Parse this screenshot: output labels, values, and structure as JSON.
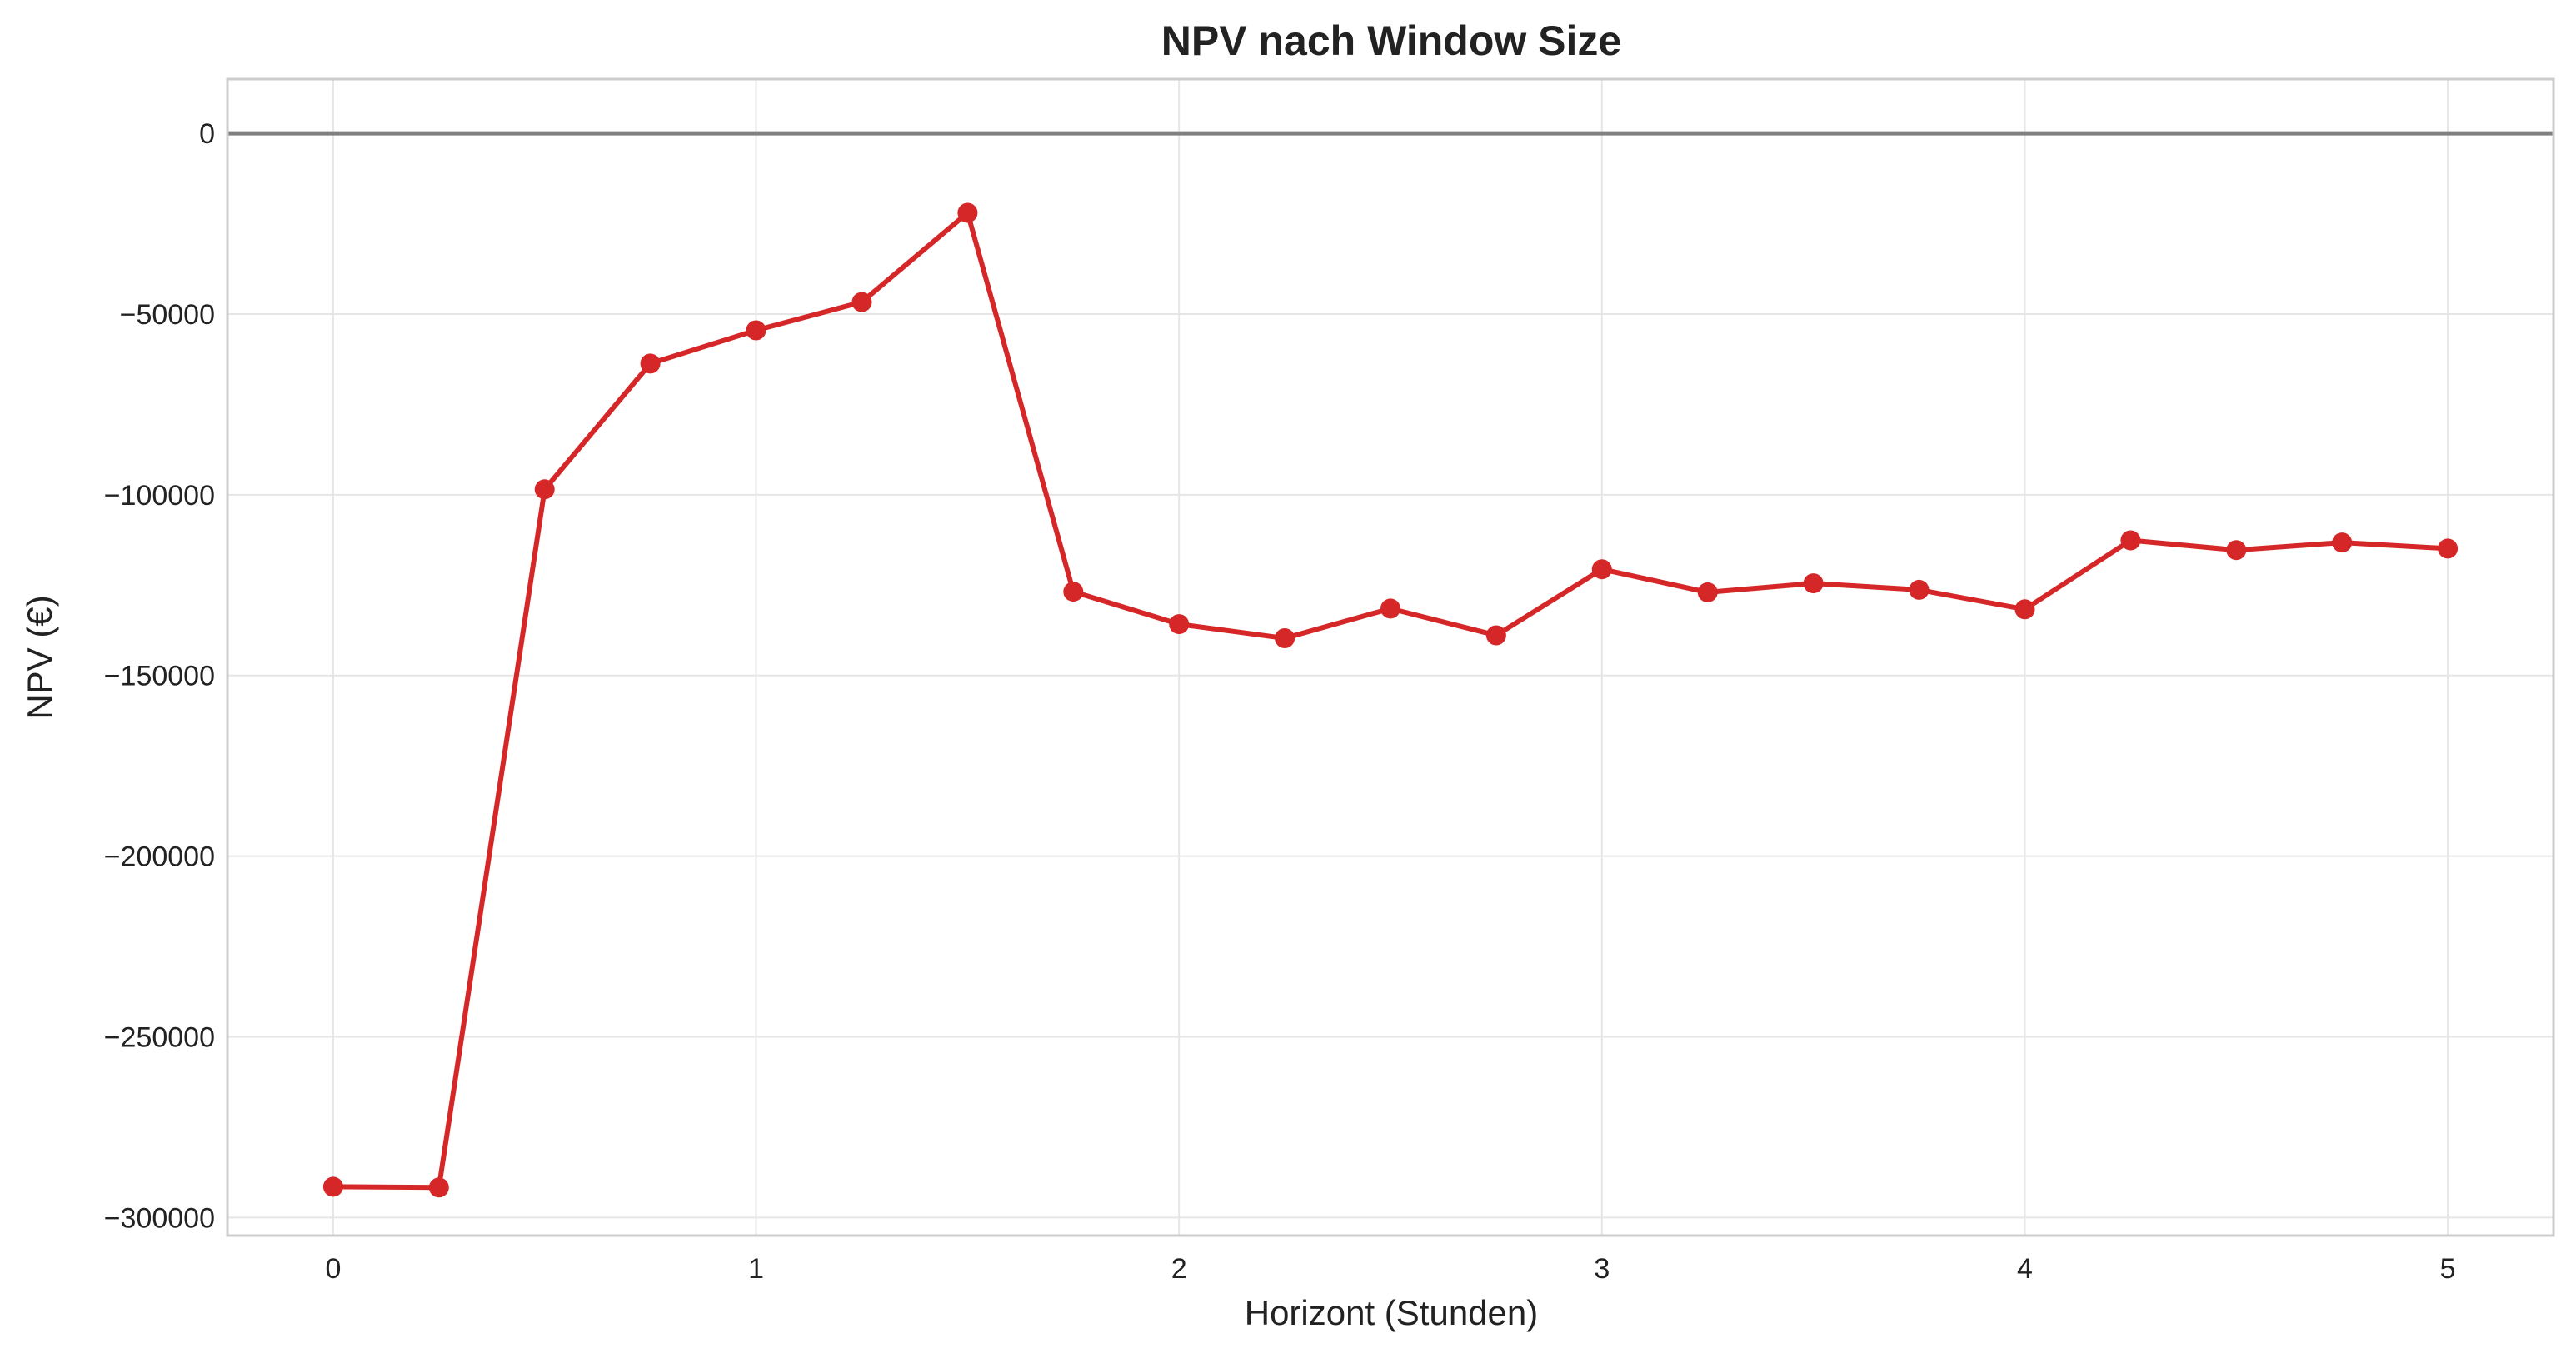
{
  "chart_data": {
    "type": "line",
    "title": "NPV nach Window Size",
    "xlabel": "Horizont (Stunden)",
    "ylabel": "NPV (€)",
    "xlim": [
      -0.25,
      5.25
    ],
    "ylim": [
      -305000,
      15000
    ],
    "xticks": [
      0,
      1,
      2,
      3,
      4,
      5
    ],
    "xtick_labels": [
      "0",
      "1",
      "2",
      "3",
      "4",
      "5"
    ],
    "yticks": [
      0,
      -50000,
      -100000,
      -150000,
      -200000,
      -250000,
      -300000
    ],
    "ytick_labels": [
      "0",
      "−50000",
      "−100000",
      "−150000",
      "−200000",
      "−250000",
      "−300000"
    ],
    "grid": true,
    "reference_line": {
      "y": 0,
      "color": "#808080"
    },
    "series": [
      {
        "color": "#d62728",
        "x": [
          0,
          0.25,
          0.5,
          0.75,
          1,
          1.25,
          1.5,
          1.75,
          2,
          2.25,
          2.5,
          2.75,
          3,
          3.25,
          3.5,
          3.75,
          4,
          4.25,
          4.5,
          4.75,
          5
        ],
        "y": [
          -291500,
          -291700,
          -98500,
          -63700,
          -54500,
          -46700,
          -22000,
          -126800,
          -135800,
          -139700,
          -131500,
          -138900,
          -120600,
          -127000,
          -124500,
          -126300,
          -131700,
          -112600,
          -115300,
          -113200,
          -114900
        ]
      }
    ]
  }
}
